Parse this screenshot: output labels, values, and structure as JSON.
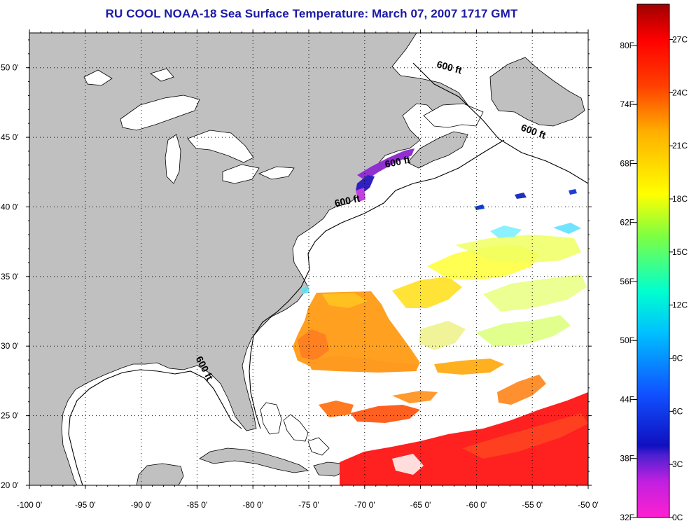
{
  "title": "RU COOL  NOAA-18  Sea Surface Temperature:  March 07, 2007 1717 GMT",
  "map": {
    "lon_range": [
      -100,
      -50
    ],
    "lat_range": [
      20,
      52.5
    ],
    "lon_ticks": [
      {
        "value": -100,
        "label": "-100 0'"
      },
      {
        "value": -95,
        "label": "-95 0'"
      },
      {
        "value": -90,
        "label": "-90 0'"
      },
      {
        "value": -85,
        "label": "-85 0'"
      },
      {
        "value": -80,
        "label": "-80 0'"
      },
      {
        "value": -75,
        "label": "-75 0'"
      },
      {
        "value": -70,
        "label": "-70 0'"
      },
      {
        "value": -65,
        "label": "-65 0'"
      },
      {
        "value": -60,
        "label": "-60 0'"
      },
      {
        "value": -55,
        "label": "-55 0'"
      },
      {
        "value": -50,
        "label": "-50 0'"
      }
    ],
    "lat_ticks": [
      {
        "value": 20,
        "label": "20 0'"
      },
      {
        "value": 25,
        "label": "25 0'"
      },
      {
        "value": 30,
        "label": "30 0'"
      },
      {
        "value": 35,
        "label": "35 0'"
      },
      {
        "value": 40,
        "label": "40 0'"
      },
      {
        "value": 45,
        "label": "45 0'"
      },
      {
        "value": 50,
        "label": "50 0'"
      }
    ],
    "grid": "dotted",
    "land_color": "#c0c0c0",
    "ocean_color": "#ffffff",
    "contour_labels": [
      {
        "text": "600 ft",
        "lon": -62.5,
        "lat": 49.8
      },
      {
        "text": "600 ft",
        "lon": -55,
        "lat": 45.2
      },
      {
        "text": "600 ft",
        "lon": -67,
        "lat": 43.0
      },
      {
        "text": "600 ft",
        "lon": -71.5,
        "lat": 40.2
      },
      {
        "text": "600 ft",
        "lon": -84.6,
        "lat": 28.3
      }
    ]
  },
  "colorbar": {
    "fahrenheit_labels": [
      {
        "value": 80,
        "label": "80F"
      },
      {
        "value": 74,
        "label": "74F"
      },
      {
        "value": 68,
        "label": "68F"
      },
      {
        "value": 62,
        "label": "62F"
      },
      {
        "value": 56,
        "label": "56F"
      },
      {
        "value": 50,
        "label": "50F"
      },
      {
        "value": 44,
        "label": "44F"
      },
      {
        "value": 38,
        "label": "38F"
      },
      {
        "value": 32,
        "label": "32F"
      }
    ],
    "celsius_labels": [
      {
        "value": 27,
        "label": "27C"
      },
      {
        "value": 24,
        "label": "24C"
      },
      {
        "value": 21,
        "label": "21C"
      },
      {
        "value": 18,
        "label": "18C"
      },
      {
        "value": 15,
        "label": "15C"
      },
      {
        "value": 12,
        "label": "12C"
      },
      {
        "value": 9,
        "label": "9C"
      },
      {
        "value": 6,
        "label": "6C"
      },
      {
        "value": 3,
        "label": "3C"
      },
      {
        "value": 0,
        "label": "0C"
      }
    ],
    "range_celsius": [
      0,
      29
    ],
    "colors": [
      "#ff20d0",
      "#8020e0",
      "#1010d0",
      "#0060ff",
      "#00e0ff",
      "#40ff80",
      "#ffff00",
      "#ff9000",
      "#ff0000",
      "#a00000"
    ]
  }
}
